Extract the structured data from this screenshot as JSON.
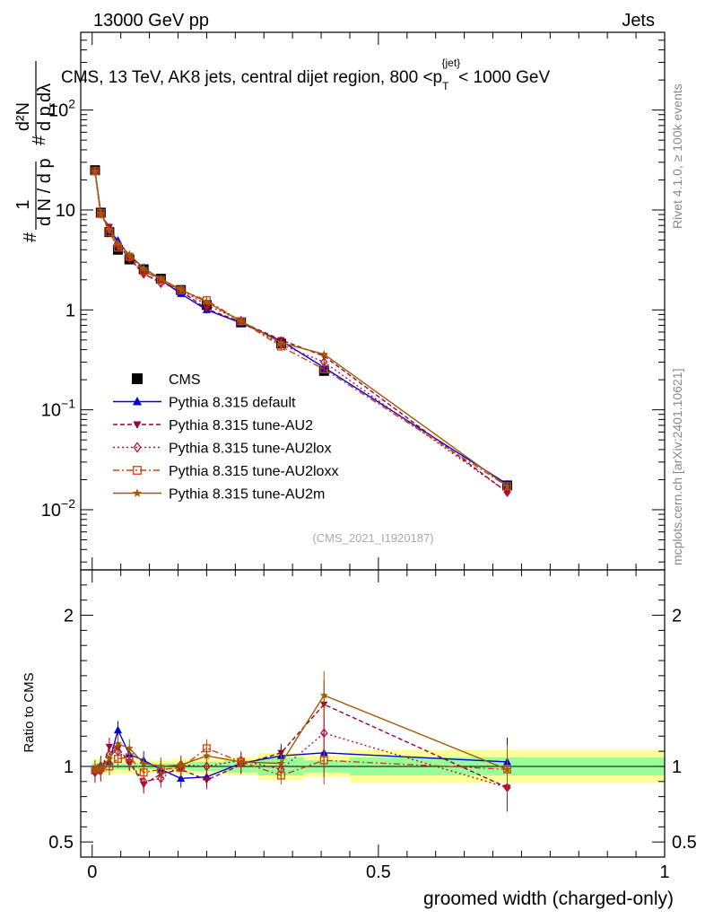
{
  "header": {
    "left": "13000 GeV pp",
    "right": "Jets",
    "side_top": "Rivet 4.1.0, ≥ 100k events",
    "side_bottom": "mcplots.cern.ch [arXiv:2401.10621]"
  },
  "chart_data": [
    {
      "type": "line",
      "panel": "main",
      "title": "CMS, 13 TeV, AK8 jets, central dijet region, 800 <p_T^{jet}< 1000 GeV",
      "title_parts": {
        "a": "CMS, 13 TeV, AK8 jets, central dijet region, 800 <p",
        "sub": "T",
        "sup": "{jet}",
        "b": "< 1000 GeV"
      },
      "ylabel_parts": {
        "num": "1",
        "den": "d N / d p",
        "den_sub": "T",
        "rnum": "d²N",
        "rden": "d p",
        "rden_sub": "T",
        "rden_end": " dλ",
        "hash": "#"
      },
      "xlabel": "groomed width (charged-only)",
      "yscale": "log",
      "ylim": [
        0.0025,
        600
      ],
      "xlim": [
        -0.02,
        1.0
      ],
      "y_ticks": [
        {
          "value": 0.01,
          "base": "10",
          "exp": "−2"
        },
        {
          "value": 0.1,
          "base": "10",
          "exp": "−1"
        },
        {
          "value": 1,
          "base": "1",
          "exp": ""
        },
        {
          "value": 10,
          "base": "10",
          "exp": ""
        },
        {
          "value": 100,
          "base": "10",
          "exp": "2"
        }
      ],
      "watermark": "(CMS_2021_I1920187)",
      "x": [
        0.005,
        0.015,
        0.03,
        0.045,
        0.065,
        0.09,
        0.12,
        0.155,
        0.2,
        0.26,
        0.33,
        0.405,
        0.725
      ],
      "series": [
        {
          "name": "CMS",
          "color": "#000000",
          "marker": "square",
          "dash": "",
          "values": [
            25,
            9.4,
            6.0,
            4.0,
            3.2,
            2.55,
            2.05,
            1.58,
            1.12,
            0.75,
            0.46,
            0.245,
            0.0175
          ]
        },
        {
          "name": "Pythia 8.315 default",
          "color": "#0000dd",
          "marker": "triangle-up",
          "dash": "",
          "values": [
            24.2,
            9.5,
            6.2,
            4.95,
            3.45,
            2.65,
            2.0,
            1.45,
            1.0,
            0.74,
            0.49,
            0.265,
            0.018
          ]
        },
        {
          "name": "Pythia 8.315 tune-AU2",
          "color": "#990033",
          "marker": "triangle-down",
          "dash": "5,3",
          "values": [
            23.8,
            9.0,
            6.8,
            4.5,
            3.3,
            2.25,
            1.95,
            1.55,
            1.02,
            0.76,
            0.5,
            0.345,
            0.015
          ]
        },
        {
          "name": "Pythia 8.315 tune-AU2lox",
          "color": "#bb1133",
          "marker": "diamond-open",
          "dash": "2,3",
          "values": [
            24.5,
            9.2,
            6.5,
            4.4,
            3.3,
            2.3,
            1.85,
            1.6,
            1.12,
            0.78,
            0.45,
            0.3,
            0.015
          ]
        },
        {
          "name": "Pythia 8.315 tune-AU2loxx",
          "color": "#cc4411",
          "marker": "square-open",
          "dash": "7,3,2,3",
          "values": [
            24.5,
            9.3,
            6.0,
            4.2,
            3.4,
            2.45,
            2.0,
            1.57,
            1.25,
            0.77,
            0.43,
            0.255,
            0.0172
          ]
        },
        {
          "name": "Pythia 8.315 tune-AU2m",
          "color": "#a05a00",
          "marker": "star",
          "dash": "",
          "values": [
            24.5,
            9.3,
            6.3,
            4.6,
            3.6,
            2.6,
            2.05,
            1.6,
            1.2,
            0.77,
            0.47,
            0.36,
            0.0172
          ]
        }
      ]
    },
    {
      "type": "line",
      "panel": "ratio",
      "ylabel": "Ratio to CMS",
      "ylim": [
        0.4,
        2.3
      ],
      "y_ticks": [
        {
          "value": 0.5,
          "label": "0.5"
        },
        {
          "value": 1,
          "label": "1"
        },
        {
          "value": 2,
          "label": "2"
        }
      ],
      "x_ticks": [
        {
          "value": 0,
          "label": "0"
        },
        {
          "value": 0.5,
          "label": "0.5"
        },
        {
          "value": 1,
          "label": "1"
        }
      ],
      "bin_edges": [
        0.0,
        0.01,
        0.02,
        0.04,
        0.05,
        0.08,
        0.1,
        0.14,
        0.17,
        0.23,
        0.29,
        0.37,
        0.45,
        1.0
      ],
      "band_yellow_halfwidth": [
        0.05,
        0.05,
        0.05,
        0.05,
        0.05,
        0.05,
        0.04,
        0.05,
        0.05,
        0.06,
        0.09,
        0.07,
        0.11
      ],
      "band_green_halfwidth": [
        0.02,
        0.02,
        0.02,
        0.02,
        0.02,
        0.02,
        0.02,
        0.02,
        0.03,
        0.04,
        0.06,
        0.04,
        0.06
      ],
      "x": [
        0.005,
        0.015,
        0.03,
        0.045,
        0.065,
        0.09,
        0.12,
        0.155,
        0.2,
        0.26,
        0.33,
        0.405,
        0.725
      ],
      "series": [
        {
          "name": "Pythia 8.315 default",
          "color": "#0000dd",
          "marker": "triangle-up",
          "dash": "",
          "values": [
            0.97,
            1.01,
            1.03,
            1.24,
            1.08,
            1.04,
            0.98,
            0.92,
            0.93,
            1.02,
            1.07,
            1.09,
            1.03
          ]
        },
        {
          "name": "Pythia 8.315 tune-AU2",
          "color": "#990033",
          "marker": "triangle-down",
          "dash": "5,3",
          "values": [
            0.95,
            0.96,
            1.13,
            1.12,
            1.03,
            0.88,
            0.95,
            0.98,
            0.91,
            1.01,
            1.09,
            1.41,
            0.86
          ]
        },
        {
          "name": "Pythia 8.315 tune-AU2lox",
          "color": "#bb1133",
          "marker": "diamond-open",
          "dash": "2,3",
          "values": [
            0.98,
            0.98,
            1.08,
            1.1,
            1.03,
            0.9,
            0.92,
            1.01,
            1.0,
            1.04,
            0.98,
            1.22,
            0.86
          ]
        },
        {
          "name": "Pythia 8.315 tune-AU2loxx",
          "color": "#cc4411",
          "marker": "square-open",
          "dash": "7,3,2,3",
          "values": [
            0.98,
            0.99,
            1.0,
            1.05,
            1.06,
            0.96,
            0.98,
            0.99,
            1.12,
            1.03,
            0.94,
            1.04,
            0.98
          ]
        },
        {
          "name": "Pythia 8.315 tune-AU2m",
          "color": "#a05a00",
          "marker": "star",
          "dash": "",
          "values": [
            0.98,
            0.99,
            1.05,
            1.15,
            1.12,
            1.02,
            1.0,
            1.01,
            1.07,
            1.03,
            1.02,
            1.47,
            0.98
          ]
        }
      ]
    }
  ]
}
